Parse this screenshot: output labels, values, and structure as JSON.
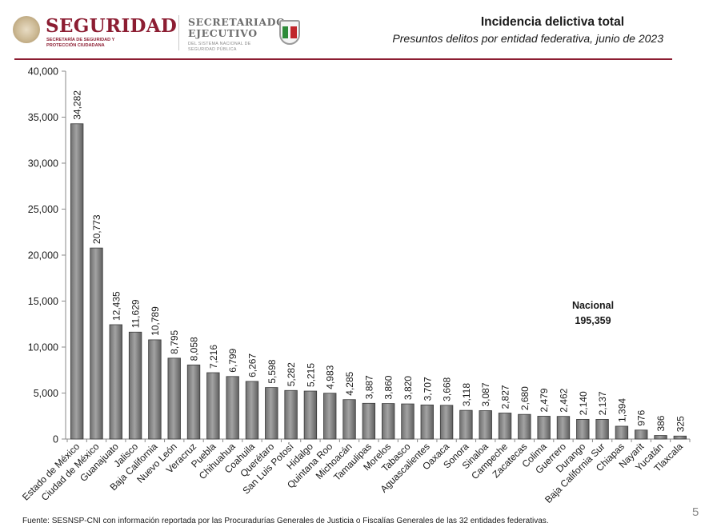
{
  "header": {
    "brand_title": "SEGURIDAD",
    "brand_subtitle": "SECRETARÍA DE SEGURIDAD Y PROTECCIÓN CIUDADANA",
    "sesnsp_line1": "SECRETARIADO",
    "sesnsp_line2": "EJECUTIVO",
    "sesnsp_subtitle": "DEL SISTEMA NACIONAL DE SEGURIDAD PÚBLICA",
    "title": "Incidencia delictiva total",
    "subtitle": "Presuntos delitos por entidad federativa, junio de 2023"
  },
  "colors": {
    "brand": "#8c1d32",
    "bar_fill": "#8c8c8c",
    "bar_edge": "#3a3a3a",
    "axis": "#8a8a8a"
  },
  "chart_data": {
    "type": "bar",
    "title": "Incidencia delictiva total",
    "subtitle": "Presuntos delitos por entidad federativa, junio de 2023",
    "xlabel": "",
    "ylabel": "",
    "ylim": [
      0,
      40000
    ],
    "yticks": [
      0,
      5000,
      10000,
      15000,
      20000,
      25000,
      30000,
      35000,
      40000
    ],
    "ytick_labels": [
      "0",
      "5,000",
      "10,000",
      "15,000",
      "20,000",
      "25,000",
      "30,000",
      "35,000",
      "40,000"
    ],
    "grid": false,
    "categories": [
      "Estado de México",
      "Ciudad de México",
      "Guanajuato",
      "Jalisco",
      "Baja California",
      "Nuevo León",
      "Veracruz",
      "Puebla",
      "Chihuahua",
      "Coahuila",
      "Querétaro",
      "San Luis Potosí",
      "Hidalgo",
      "Quintana Roo",
      "Michoacán",
      "Tamaulipas",
      "Morelos",
      "Tabasco",
      "Aguascalientes",
      "Oaxaca",
      "Sonora",
      "Sinaloa",
      "Campeche",
      "Zacatecas",
      "Colima",
      "Guerrero",
      "Durango",
      "Baja California Sur",
      "Chiapas",
      "Nayarit",
      "Yucatán",
      "Tlaxcala"
    ],
    "values": [
      34282,
      20773,
      12435,
      11629,
      10789,
      8795,
      8058,
      7216,
      6799,
      6267,
      5598,
      5282,
      5215,
      4983,
      4285,
      3887,
      3860,
      3820,
      3707,
      3668,
      3118,
      3087,
      2827,
      2680,
      2479,
      2462,
      2140,
      2137,
      1394,
      976,
      386,
      325
    ],
    "value_labels": [
      "34,282",
      "20,773",
      "12,435",
      "11,629",
      "10,789",
      "8,795",
      "8,058",
      "7,216",
      "6,799",
      "6,267",
      "5,598",
      "5,282",
      "5,215",
      "4,983",
      "4,285",
      "3,887",
      "3,860",
      "3,820",
      "3,707",
      "3,668",
      "3,118",
      "3,087",
      "2,827",
      "2,680",
      "2,479",
      "2,462",
      "2,140",
      "2,137",
      "1,394",
      "976",
      "386",
      "325"
    ],
    "annotation": {
      "label": "Nacional",
      "value": "195,359"
    }
  },
  "footer": {
    "source": "Fuente: SESNSP-CNI con información reportada por las Procuradurías Generales de Justicia o Fiscalías Generales de las 32 entidades federativas.",
    "page_number": "5"
  }
}
